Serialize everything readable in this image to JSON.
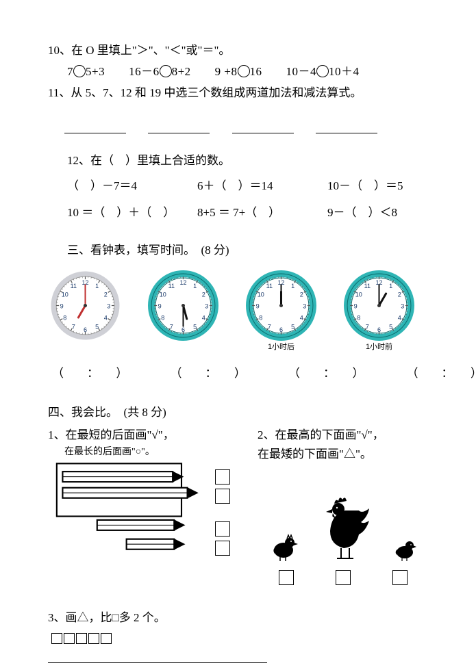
{
  "q10": {
    "prompt": "10、在 O 里填上\"＞\"、\"＜\"或\"＝\"。",
    "items": [
      "7",
      "5+3　　16－6",
      "8+2　　9 +8",
      "16　　10－4",
      "10＋4"
    ]
  },
  "q11": {
    "prompt": "11、从 5、7、12 和 19 中选三个数组成两道加法和减法算式。"
  },
  "q12": {
    "prompt": "12、在（　）里填上合适的数。",
    "rows": [
      [
        "（　）－7＝4",
        "6＋（　）＝14",
        "10－（　）＝5"
      ],
      [
        "10 ＝（　）＋（　）",
        "8+5 ＝ 7+（　）",
        "9－（　）＜8"
      ]
    ]
  },
  "section3": {
    "title": "三、看钟表，填写时间。　(8 分)",
    "clocks": [
      {
        "style": "plain",
        "hour_angle": 210,
        "min_angle": 0,
        "caption": ""
      },
      {
        "style": "teal",
        "hour_angle": 165,
        "min_angle": 180,
        "caption": ""
      },
      {
        "style": "teal",
        "hour_angle": 0,
        "min_angle": 0,
        "caption": "1小时后"
      },
      {
        "style": "teal",
        "hour_angle": 30,
        "min_angle": 0,
        "caption": "1小时前"
      }
    ],
    "answer": "（　　：　　）",
    "colors": {
      "teal": "#2fb5b5",
      "red": "#c03030",
      "plain_rim": "#cfd0d6"
    }
  },
  "section4": {
    "title": "四、我会比。　(共 8 分)",
    "q1": {
      "line1": "1、在最短的后面画\"√\"，",
      "line2": "在最长的后面画\"○\"。"
    },
    "q2": {
      "line1": "2、在最高的下面画\"√\"，",
      "line2": "在最矮的下面画\"△\"。"
    },
    "q3": {
      "prompt": "3、画△，比□多 2 个。",
      "square_count": 5
    }
  }
}
